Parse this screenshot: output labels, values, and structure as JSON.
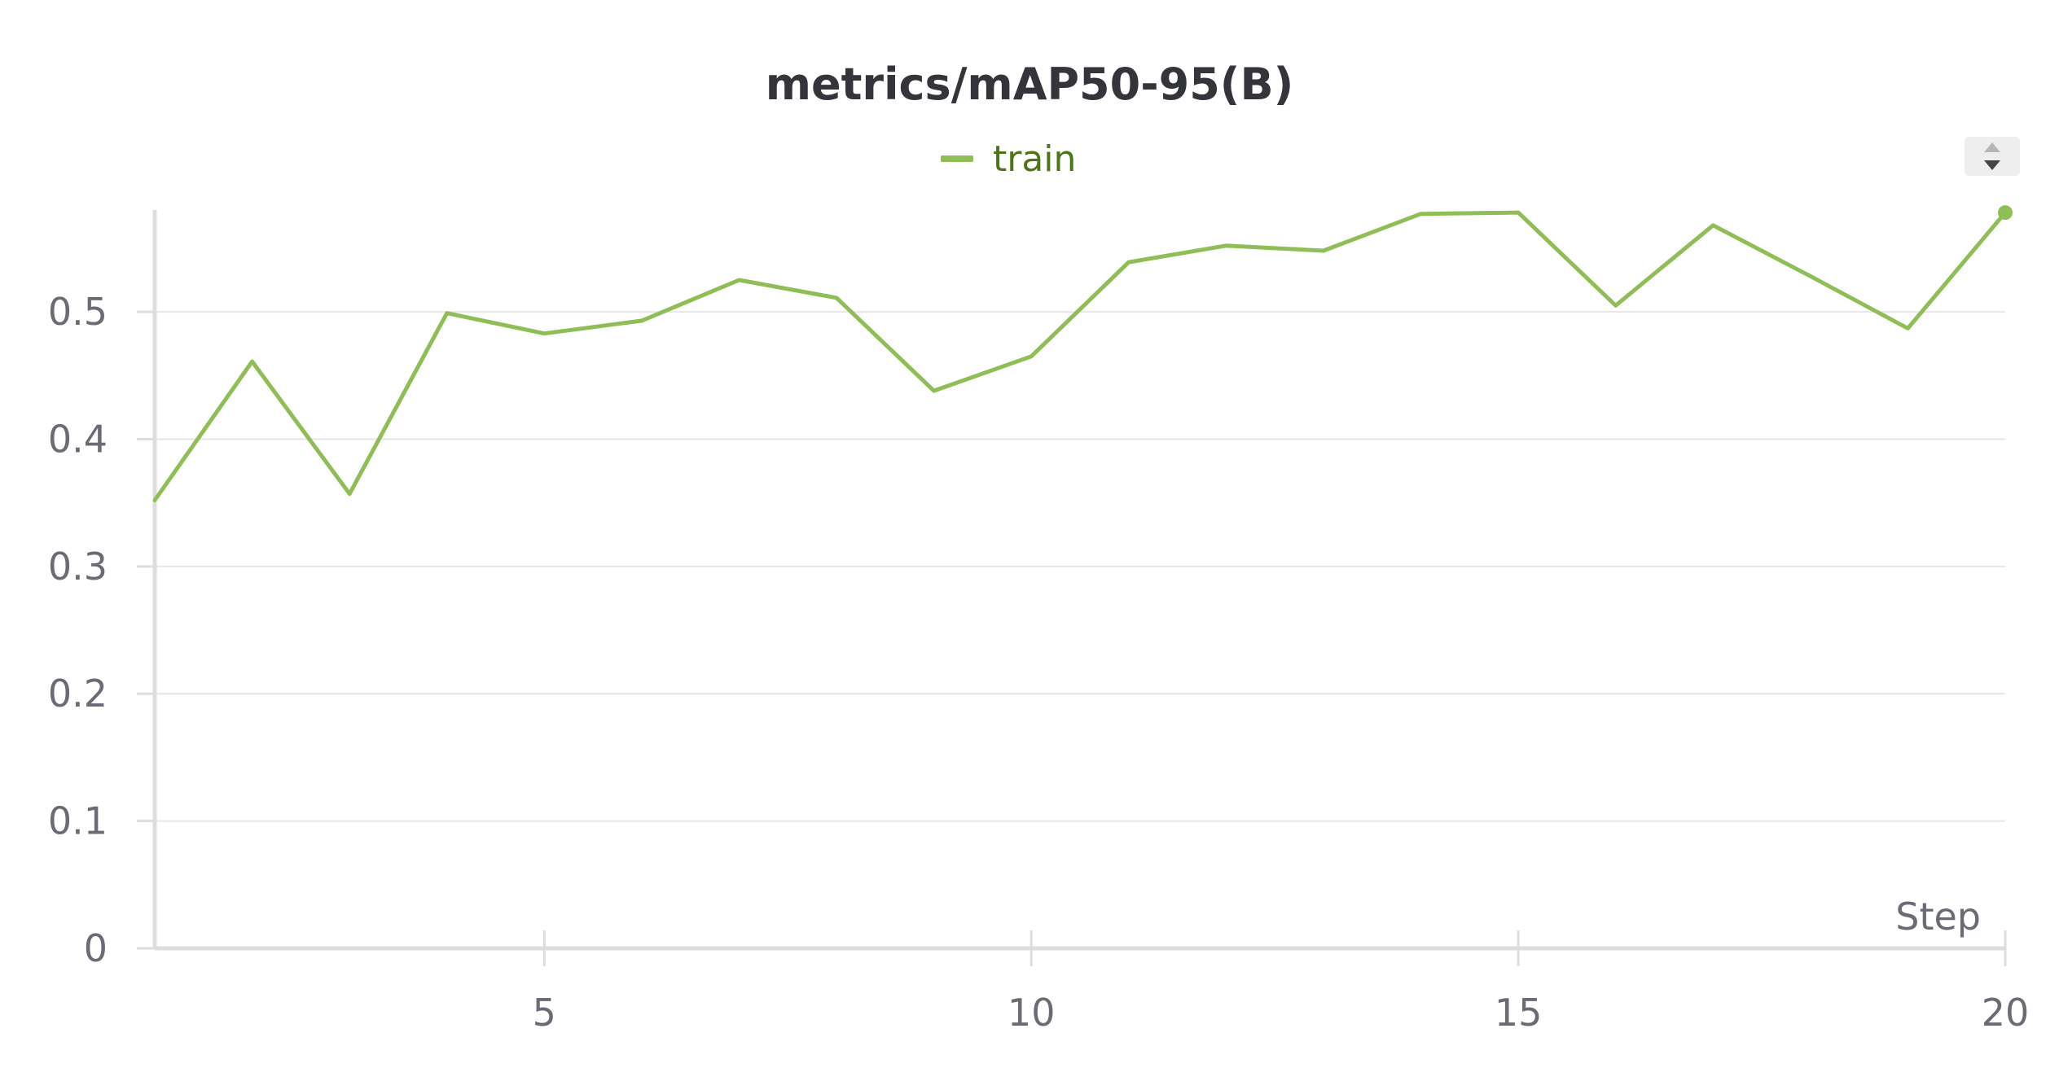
{
  "colors": {
    "series": "#8fbd56",
    "grid": "#e6e6e6",
    "axis": "#dddddd",
    "tick_text": "#6b6b76",
    "title_text": "#33353b"
  },
  "icons": {
    "legend_scroll": "up-down-caret-icon"
  },
  "chart_data": {
    "type": "line",
    "title": "metrics/mAP50-95(B)",
    "xlabel": "Step",
    "ylabel": "",
    "xlim": [
      1,
      20
    ],
    "ylim": [
      0,
      0.58
    ],
    "xticks": [
      5,
      10,
      15,
      20
    ],
    "yticks": [
      0,
      0.1,
      0.2,
      0.3,
      0.4,
      0.5
    ],
    "ytick_labels": [
      "0",
      "0.1",
      "0.2",
      "0.3",
      "0.4",
      "0.5"
    ],
    "xtick_labels": [
      "5",
      "10",
      "15",
      "20"
    ],
    "grid": true,
    "legend_position": "top-center",
    "series": [
      {
        "name": "train",
        "x": [
          1,
          2,
          3,
          4,
          5,
          6,
          7,
          8,
          9,
          10,
          11,
          12,
          13,
          14,
          15,
          16,
          17,
          18,
          19,
          20
        ],
        "values": [
          0.352,
          0.461,
          0.357,
          0.499,
          0.483,
          0.493,
          0.525,
          0.511,
          0.438,
          0.465,
          0.539,
          0.552,
          0.548,
          0.577,
          0.578,
          0.505,
          0.568,
          0.528,
          0.487,
          0.578
        ]
      }
    ]
  }
}
